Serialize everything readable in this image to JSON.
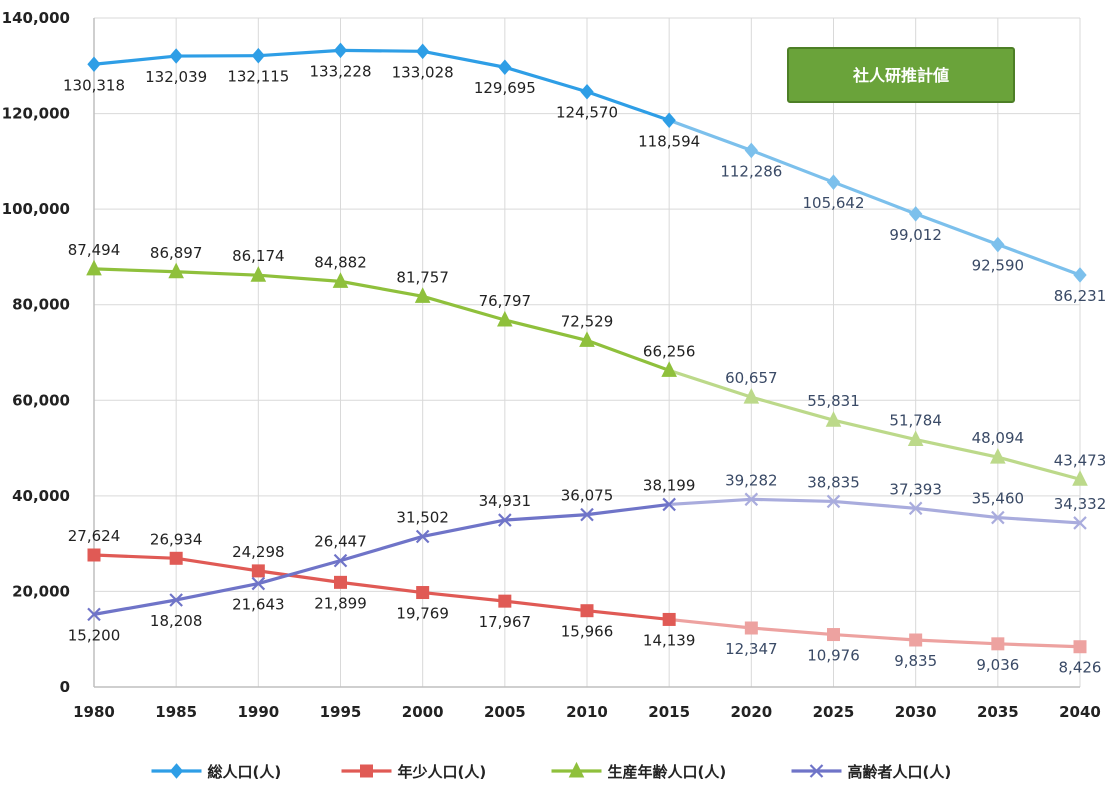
{
  "chart_data": {
    "type": "line",
    "title": "",
    "xlabel": "",
    "ylabel": "",
    "x": [
      "1980",
      "1985",
      "1990",
      "1995",
      "2000",
      "2005",
      "2010",
      "2015",
      "2020",
      "2025",
      "2030",
      "2035",
      "2040"
    ],
    "ylim": [
      0,
      140000
    ],
    "yticks": [
      0,
      20000,
      40000,
      60000,
      80000,
      100000,
      120000,
      140000
    ],
    "ytick_labels": [
      "0",
      "20,000",
      "40,000",
      "60,000",
      "80,000",
      "100,000",
      "120,000",
      "140,000"
    ],
    "projection_start_index": 7,
    "annotation": "社人研推計値",
    "legend_position": "bottom",
    "grid": true,
    "series": [
      {
        "name": "総人口(人)",
        "marker": "diamond",
        "color": "#2e9ee6",
        "projection_color": "#7cc0ec",
        "values": [
          130318,
          132039,
          132115,
          133228,
          133028,
          129695,
          124570,
          118594,
          112286,
          105642,
          99012,
          92590,
          86231
        ],
        "labels": [
          "130,318",
          "132,039",
          "132,115",
          "133,228",
          "133,028",
          "129,695",
          "124,570",
          "118,594",
          "112,286",
          "105,642",
          "99,012",
          "92,590",
          "86,231"
        ],
        "label_pos": [
          "below",
          "below",
          "below",
          "below",
          "below",
          "below",
          "below",
          "below",
          "below",
          "below",
          "below",
          "below",
          "below"
        ]
      },
      {
        "name": "年少人口(人)",
        "marker": "square",
        "color": "#e05a55",
        "projection_color": "#eda2a0",
        "values": [
          27624,
          26934,
          24298,
          21899,
          19769,
          17967,
          15966,
          14139,
          12347,
          10976,
          9835,
          9036,
          8426
        ],
        "labels": [
          "27,624",
          "26,934",
          "24,298",
          "21,899",
          "19,769",
          "17,967",
          "15,966",
          "14,139",
          "12,347",
          "10,976",
          "9,835",
          "9,036",
          "8,426"
        ],
        "label_pos": [
          "above",
          "above",
          "above",
          "below",
          "below",
          "below",
          "below",
          "below",
          "below",
          "below",
          "below",
          "below",
          "below"
        ]
      },
      {
        "name": "生産年齢人口(人)",
        "marker": "triangle",
        "color": "#8fc03c",
        "projection_color": "#bcd98a",
        "values": [
          87494,
          86897,
          86174,
          84882,
          81757,
          76797,
          72529,
          66256,
          60657,
          55831,
          51784,
          48094,
          43473
        ],
        "labels": [
          "87,494",
          "86,897",
          "86,174",
          "84,882",
          "81,757",
          "76,797",
          "72,529",
          "66,256",
          "60,657",
          "55,831",
          "51,784",
          "48,094",
          "43,473"
        ],
        "label_pos": [
          "above",
          "above",
          "above",
          "above",
          "above",
          "above",
          "above",
          "above",
          "above",
          "above",
          "above",
          "above",
          "above"
        ]
      },
      {
        "name": "高齢者人口(人)",
        "marker": "x",
        "color": "#6f74c8",
        "projection_color": "#a9acdd",
        "values": [
          15200,
          18208,
          21643,
          26447,
          31502,
          34931,
          36075,
          38199,
          39282,
          38835,
          37393,
          35460,
          34332
        ],
        "labels": [
          "15,200",
          "18,208",
          "21,643",
          "26,447",
          "31,502",
          "34,931",
          "36,075",
          "38,199",
          "39,282",
          "38,835",
          "37,393",
          "35,460",
          "34,332"
        ],
        "label_pos": [
          "below",
          "below",
          "below",
          "above",
          "above",
          "above",
          "above",
          "above",
          "above",
          "above",
          "above",
          "above",
          "above"
        ]
      }
    ]
  }
}
